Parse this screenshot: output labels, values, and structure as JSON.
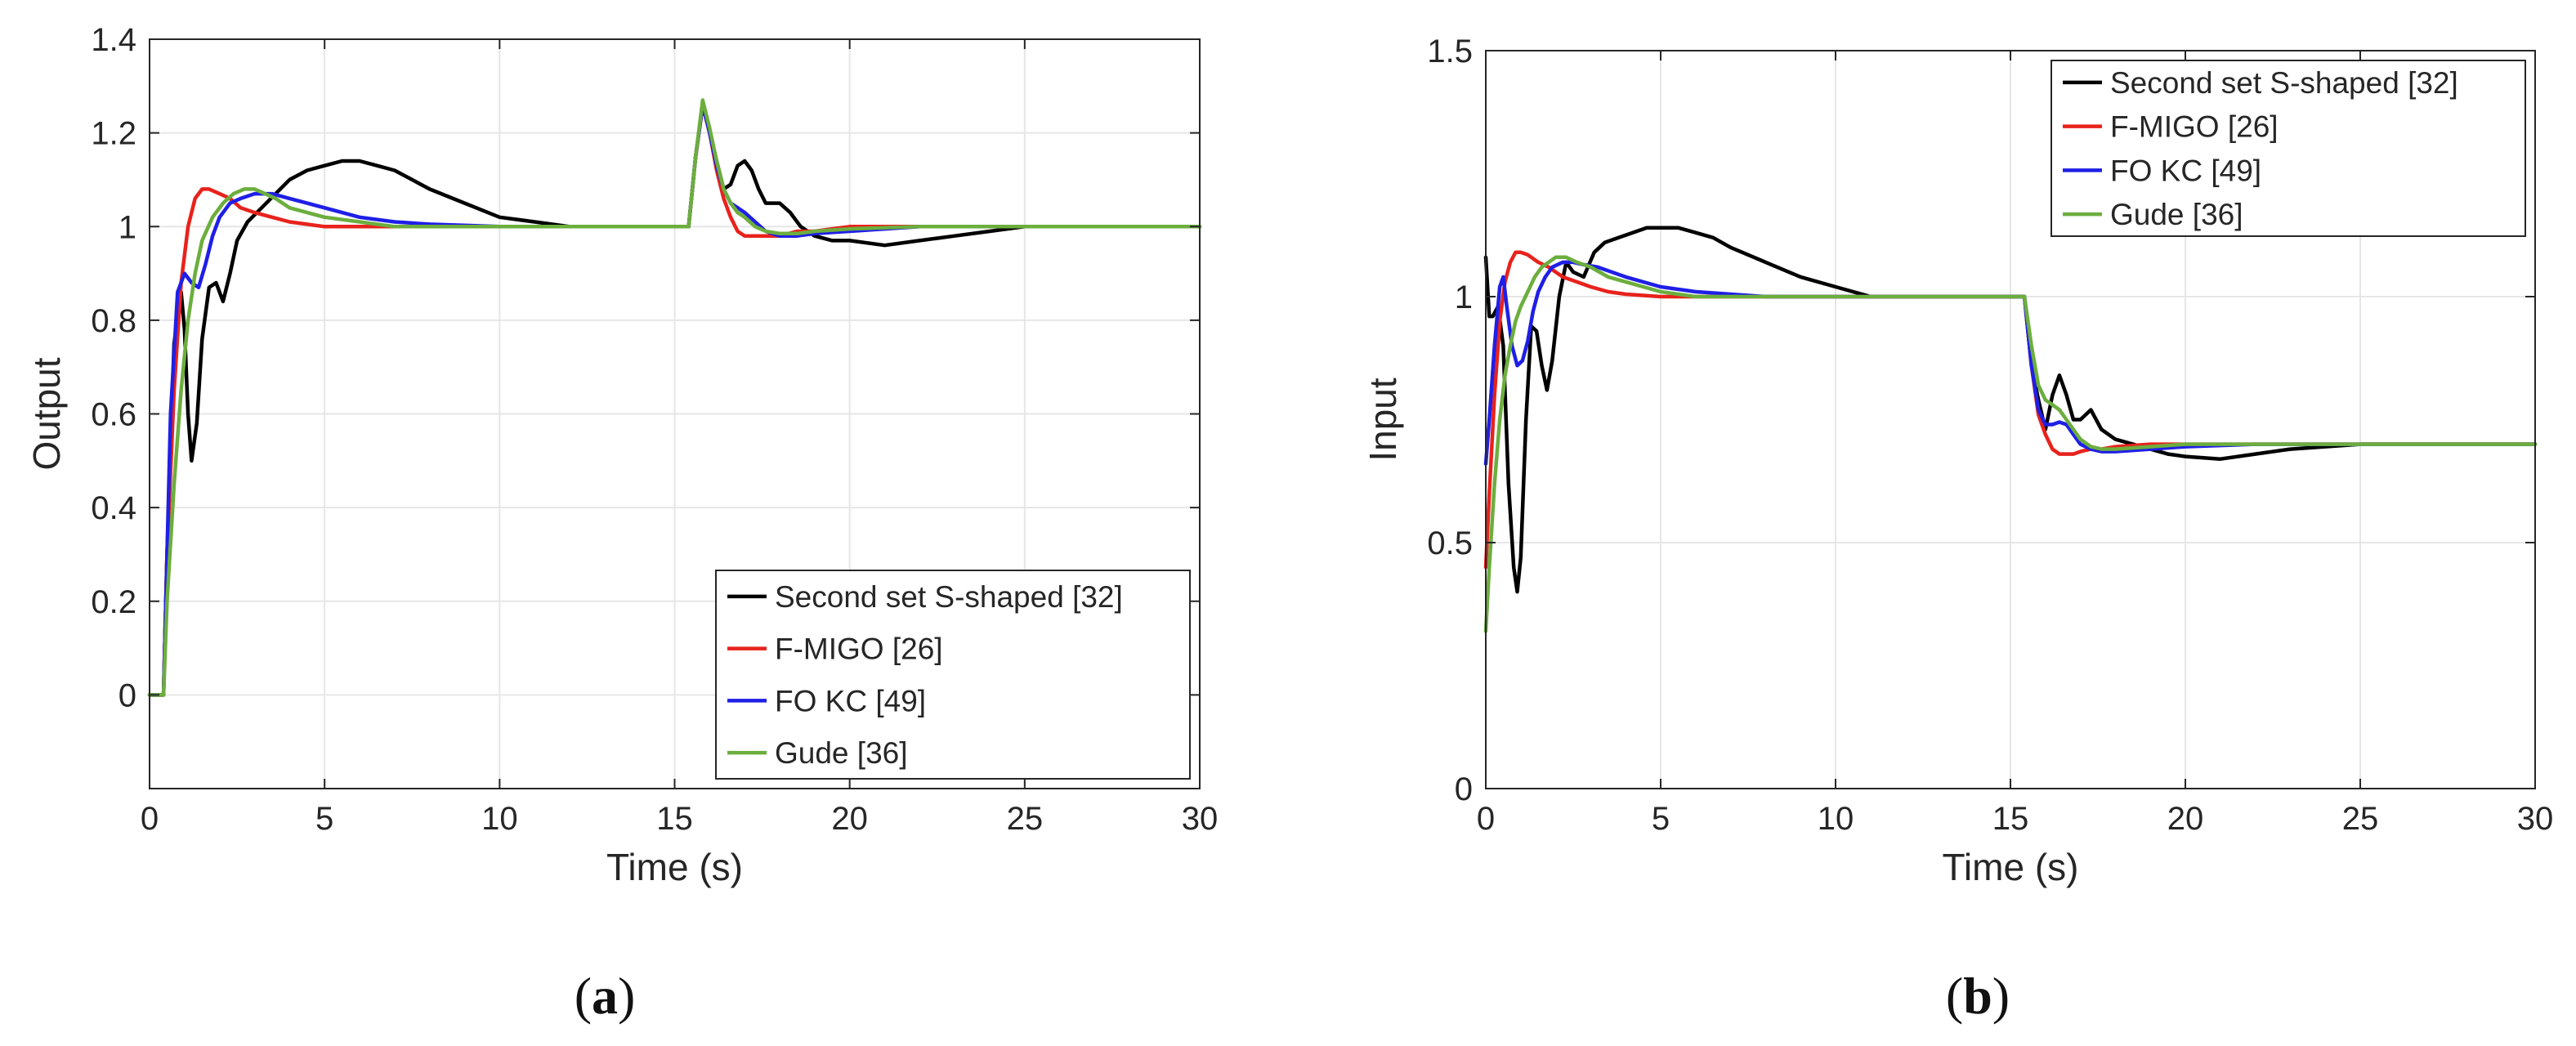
{
  "chart_data": [
    {
      "type": "line",
      "panel_label": "(a)",
      "panel_letter": "a",
      "xlabel": "Time (s)",
      "ylabel": "Output",
      "xlim": [
        0,
        30
      ],
      "ylim": [
        -0.2,
        1.4
      ],
      "xticks": [
        0,
        5,
        10,
        15,
        20,
        25,
        30
      ],
      "yticks": [
        0,
        0.2,
        0.4,
        0.6,
        0.8,
        1,
        1.2,
        1.4
      ],
      "ytick_labels": [
        "0",
        "0.2",
        "0.4",
        "0.6",
        "0.8",
        "1",
        "1.2",
        "1.4"
      ],
      "grid": true,
      "legend_position": "bottom-right",
      "series": [
        {
          "name": "Second set S-shaped [32]",
          "color": "#000000",
          "x": [
            0,
            0.4,
            0.5,
            0.7,
            0.9,
            1.0,
            1.1,
            1.2,
            1.35,
            1.5,
            1.7,
            1.9,
            2.1,
            2.3,
            2.5,
            2.8,
            3.2,
            3.6,
            4.0,
            4.5,
            5.0,
            5.5,
            6.0,
            6.5,
            7.0,
            7.5,
            8.0,
            9.0,
            10.0,
            11.0,
            12.0,
            13.0,
            14.0,
            15.0,
            15.4,
            15.6,
            15.8,
            16.0,
            16.2,
            16.4,
            16.6,
            16.8,
            17.0,
            17.2,
            17.4,
            17.6,
            17.8,
            18.0,
            18.3,
            18.6,
            19.0,
            19.5,
            20.0,
            21.0,
            22.0,
            23.0,
            24.0,
            25.0,
            26.0,
            28.0,
            30.0
          ],
          "y": [
            0,
            0,
            0.3,
            0.75,
            0.86,
            0.78,
            0.6,
            0.5,
            0.58,
            0.76,
            0.87,
            0.88,
            0.84,
            0.9,
            0.97,
            1.01,
            1.04,
            1.07,
            1.1,
            1.12,
            1.13,
            1.14,
            1.14,
            1.13,
            1.12,
            1.1,
            1.08,
            1.05,
            1.02,
            1.01,
            1.0,
            1.0,
            1.0,
            1.0,
            1.0,
            1.15,
            1.26,
            1.2,
            1.14,
            1.08,
            1.09,
            1.13,
            1.14,
            1.12,
            1.08,
            1.05,
            1.05,
            1.05,
            1.03,
            1.0,
            0.98,
            0.97,
            0.97,
            0.96,
            0.97,
            0.98,
            0.99,
            1.0,
            1.0,
            1.0,
            1.0
          ]
        },
        {
          "name": "F-MIGO [26]",
          "color": "#e8221c",
          "x": [
            0,
            0.4,
            0.5,
            0.7,
            0.9,
            1.1,
            1.3,
            1.5,
            1.7,
            2.0,
            2.3,
            2.6,
            3.0,
            3.5,
            4.0,
            5.0,
            6.0,
            7.0,
            8.0,
            10.0,
            12.0,
            14.0,
            15.0,
            15.4,
            15.6,
            15.8,
            16.0,
            16.2,
            16.4,
            16.6,
            16.8,
            17.0,
            17.3,
            17.6,
            18.0,
            18.5,
            19.0,
            20.0,
            22.0,
            25.0,
            30.0
          ],
          "y": [
            0,
            0,
            0.3,
            0.65,
            0.88,
            1.0,
            1.06,
            1.08,
            1.08,
            1.07,
            1.06,
            1.04,
            1.03,
            1.02,
            1.01,
            1.0,
            1.0,
            1.0,
            1.0,
            1.0,
            1.0,
            1.0,
            1.0,
            1.0,
            1.15,
            1.26,
            1.2,
            1.12,
            1.06,
            1.02,
            0.99,
            0.98,
            0.98,
            0.98,
            0.98,
            0.99,
            0.99,
            1.0,
            1.0,
            1.0,
            1.0
          ]
        },
        {
          "name": "FO KC [49]",
          "color": "#1f1fe6",
          "x": [
            0,
            0.4,
            0.5,
            0.6,
            0.8,
            1.0,
            1.2,
            1.4,
            1.6,
            1.8,
            2.0,
            2.3,
            2.6,
            3.0,
            3.5,
            4.0,
            4.5,
            5.0,
            6.0,
            7.0,
            8.0,
            10.0,
            12.0,
            14.0,
            15.0,
            15.4,
            15.6,
            15.8,
            16.0,
            16.2,
            16.4,
            16.6,
            16.8,
            17.0,
            17.3,
            17.6,
            18.0,
            18.5,
            19.0,
            20.0,
            22.0,
            25.0,
            30.0
          ],
          "y": [
            0,
            0,
            0.3,
            0.6,
            0.86,
            0.9,
            0.88,
            0.87,
            0.92,
            0.98,
            1.02,
            1.05,
            1.06,
            1.07,
            1.07,
            1.06,
            1.05,
            1.04,
            1.02,
            1.01,
            1.005,
            1.0,
            1.0,
            1.0,
            1.0,
            1.0,
            1.15,
            1.26,
            1.2,
            1.13,
            1.08,
            1.05,
            1.04,
            1.03,
            1.01,
            0.99,
            0.98,
            0.98,
            0.985,
            0.99,
            1.0,
            1.0,
            1.0
          ]
        },
        {
          "name": "Gude [36]",
          "color": "#6cae3e",
          "x": [
            0,
            0.4,
            0.5,
            0.7,
            0.9,
            1.1,
            1.3,
            1.5,
            1.8,
            2.1,
            2.4,
            2.7,
            3.0,
            3.3,
            3.6,
            4.0,
            4.5,
            5.0,
            6.0,
            7.0,
            8.0,
            10.0,
            12.0,
            14.0,
            15.0,
            15.4,
            15.6,
            15.8,
            16.0,
            16.2,
            16.4,
            16.6,
            16.8,
            17.0,
            17.3,
            17.6,
            18.0,
            18.5,
            19.0,
            20.0,
            22.0,
            25.0,
            30.0
          ],
          "y": [
            0,
            0,
            0.2,
            0.45,
            0.65,
            0.8,
            0.9,
            0.97,
            1.02,
            1.05,
            1.07,
            1.08,
            1.08,
            1.07,
            1.06,
            1.04,
            1.03,
            1.02,
            1.01,
            1.0,
            1.0,
            1.0,
            1.0,
            1.0,
            1.0,
            1.0,
            1.15,
            1.27,
            1.21,
            1.14,
            1.08,
            1.05,
            1.03,
            1.02,
            1.0,
            0.99,
            0.985,
            0.985,
            0.99,
            0.995,
            1.0,
            1.0,
            1.0
          ]
        }
      ]
    },
    {
      "type": "line",
      "panel_label": "(b)",
      "panel_letter": "b",
      "xlabel": "Time (s)",
      "ylabel": "Input",
      "xlim": [
        0,
        30
      ],
      "ylim": [
        0,
        1.5
      ],
      "xticks": [
        0,
        5,
        10,
        15,
        20,
        25,
        30
      ],
      "yticks": [
        0,
        0.5,
        1,
        1.5
      ],
      "ytick_labels": [
        "0",
        "0.5",
        "1",
        "1.5"
      ],
      "grid": true,
      "legend_position": "top-right",
      "series": [
        {
          "name": "Second set S-shaped [32]",
          "color": "#000000",
          "x": [
            0,
            0.1,
            0.2,
            0.35,
            0.5,
            0.65,
            0.8,
            0.9,
            1.0,
            1.15,
            1.3,
            1.45,
            1.6,
            1.75,
            1.9,
            2.1,
            2.3,
            2.5,
            2.8,
            3.1,
            3.4,
            3.8,
            4.2,
            4.6,
            5.0,
            5.5,
            6.0,
            6.5,
            7.0,
            8.0,
            9.0,
            10.0,
            11.0,
            12.0,
            13.0,
            14.0,
            15.0,
            15.4,
            15.6,
            15.8,
            16.0,
            16.2,
            16.4,
            16.6,
            16.8,
            17.0,
            17.3,
            17.6,
            18.0,
            18.5,
            19.0,
            19.5,
            20.0,
            21.0,
            22.0,
            23.0,
            24.0,
            25.0,
            26.0,
            28.0,
            30.0
          ],
          "y": [
            1.08,
            0.96,
            0.96,
            0.98,
            0.9,
            0.62,
            0.45,
            0.4,
            0.47,
            0.75,
            0.94,
            0.93,
            0.86,
            0.81,
            0.87,
            1.0,
            1.07,
            1.05,
            1.04,
            1.09,
            1.11,
            1.12,
            1.13,
            1.14,
            1.14,
            1.14,
            1.13,
            1.12,
            1.1,
            1.07,
            1.04,
            1.02,
            1.0,
            1.0,
            1.0,
            1.0,
            1.0,
            1.0,
            0.86,
            0.79,
            0.73,
            0.8,
            0.84,
            0.8,
            0.75,
            0.75,
            0.77,
            0.73,
            0.71,
            0.7,
            0.69,
            0.68,
            0.675,
            0.67,
            0.68,
            0.69,
            0.695,
            0.7,
            0.7,
            0.7,
            0.7
          ]
        },
        {
          "name": "F-MIGO [26]",
          "color": "#e8221c",
          "x": [
            0,
            0.1,
            0.25,
            0.4,
            0.55,
            0.7,
            0.85,
            1.0,
            1.2,
            1.5,
            1.8,
            2.2,
            2.6,
            3.0,
            3.5,
            4.0,
            5.0,
            6.0,
            8.0,
            10.0,
            12.0,
            14.0,
            15.0,
            15.4,
            15.6,
            15.8,
            16.0,
            16.2,
            16.4,
            16.6,
            16.8,
            17.0,
            17.3,
            17.6,
            18.0,
            19.0,
            20.0,
            22.0,
            25.0,
            30.0
          ],
          "y": [
            0.45,
            0.6,
            0.8,
            0.95,
            1.03,
            1.07,
            1.09,
            1.09,
            1.085,
            1.07,
            1.06,
            1.04,
            1.03,
            1.02,
            1.01,
            1.005,
            1.0,
            1.0,
            1.0,
            1.0,
            1.0,
            1.0,
            1.0,
            1.0,
            0.86,
            0.76,
            0.72,
            0.69,
            0.68,
            0.68,
            0.68,
            0.685,
            0.69,
            0.69,
            0.695,
            0.7,
            0.7,
            0.7,
            0.7,
            0.7
          ]
        },
        {
          "name": "FO KC [49]",
          "color": "#1f1fe6",
          "x": [
            0,
            0.1,
            0.25,
            0.4,
            0.5,
            0.6,
            0.75,
            0.9,
            1.05,
            1.2,
            1.35,
            1.5,
            1.7,
            1.9,
            2.2,
            2.5,
            2.8,
            3.2,
            3.6,
            4.0,
            5.0,
            6.0,
            8.0,
            10.0,
            12.0,
            14.0,
            15.0,
            15.4,
            15.6,
            15.8,
            16.0,
            16.2,
            16.4,
            16.6,
            16.8,
            17.0,
            17.3,
            17.6,
            18.0,
            19.0,
            20.0,
            22.0,
            25.0,
            30.0
          ],
          "y": [
            0.66,
            0.75,
            0.9,
            1.02,
            1.04,
            0.98,
            0.9,
            0.86,
            0.87,
            0.91,
            0.97,
            1.01,
            1.04,
            1.06,
            1.07,
            1.07,
            1.065,
            1.06,
            1.05,
            1.04,
            1.02,
            1.01,
            1.0,
            1.0,
            1.0,
            1.0,
            1.0,
            1.0,
            0.86,
            0.77,
            0.74,
            0.74,
            0.745,
            0.74,
            0.72,
            0.7,
            0.69,
            0.685,
            0.685,
            0.69,
            0.695,
            0.7,
            0.7,
            0.7
          ]
        },
        {
          "name": "Gude [36]",
          "color": "#6cae3e",
          "x": [
            0,
            0.1,
            0.25,
            0.4,
            0.55,
            0.7,
            0.85,
            1.0,
            1.2,
            1.4,
            1.6,
            1.8,
            2.0,
            2.3,
            2.6,
            3.0,
            3.5,
            4.0,
            5.0,
            6.0,
            8.0,
            10.0,
            12.0,
            14.0,
            15.0,
            15.4,
            15.6,
            15.8,
            16.0,
            16.2,
            16.4,
            16.6,
            16.8,
            17.0,
            17.3,
            17.6,
            18.0,
            19.0,
            20.0,
            22.0,
            25.0,
            30.0
          ],
          "y": [
            0.32,
            0.45,
            0.62,
            0.75,
            0.84,
            0.9,
            0.95,
            0.98,
            1.01,
            1.04,
            1.06,
            1.07,
            1.08,
            1.08,
            1.07,
            1.06,
            1.04,
            1.03,
            1.01,
            1.0,
            1.0,
            1.0,
            1.0,
            1.0,
            1.0,
            1.0,
            0.9,
            0.82,
            0.79,
            0.78,
            0.77,
            0.75,
            0.73,
            0.71,
            0.695,
            0.69,
            0.69,
            0.695,
            0.7,
            0.7,
            0.7,
            0.7
          ]
        }
      ]
    }
  ]
}
